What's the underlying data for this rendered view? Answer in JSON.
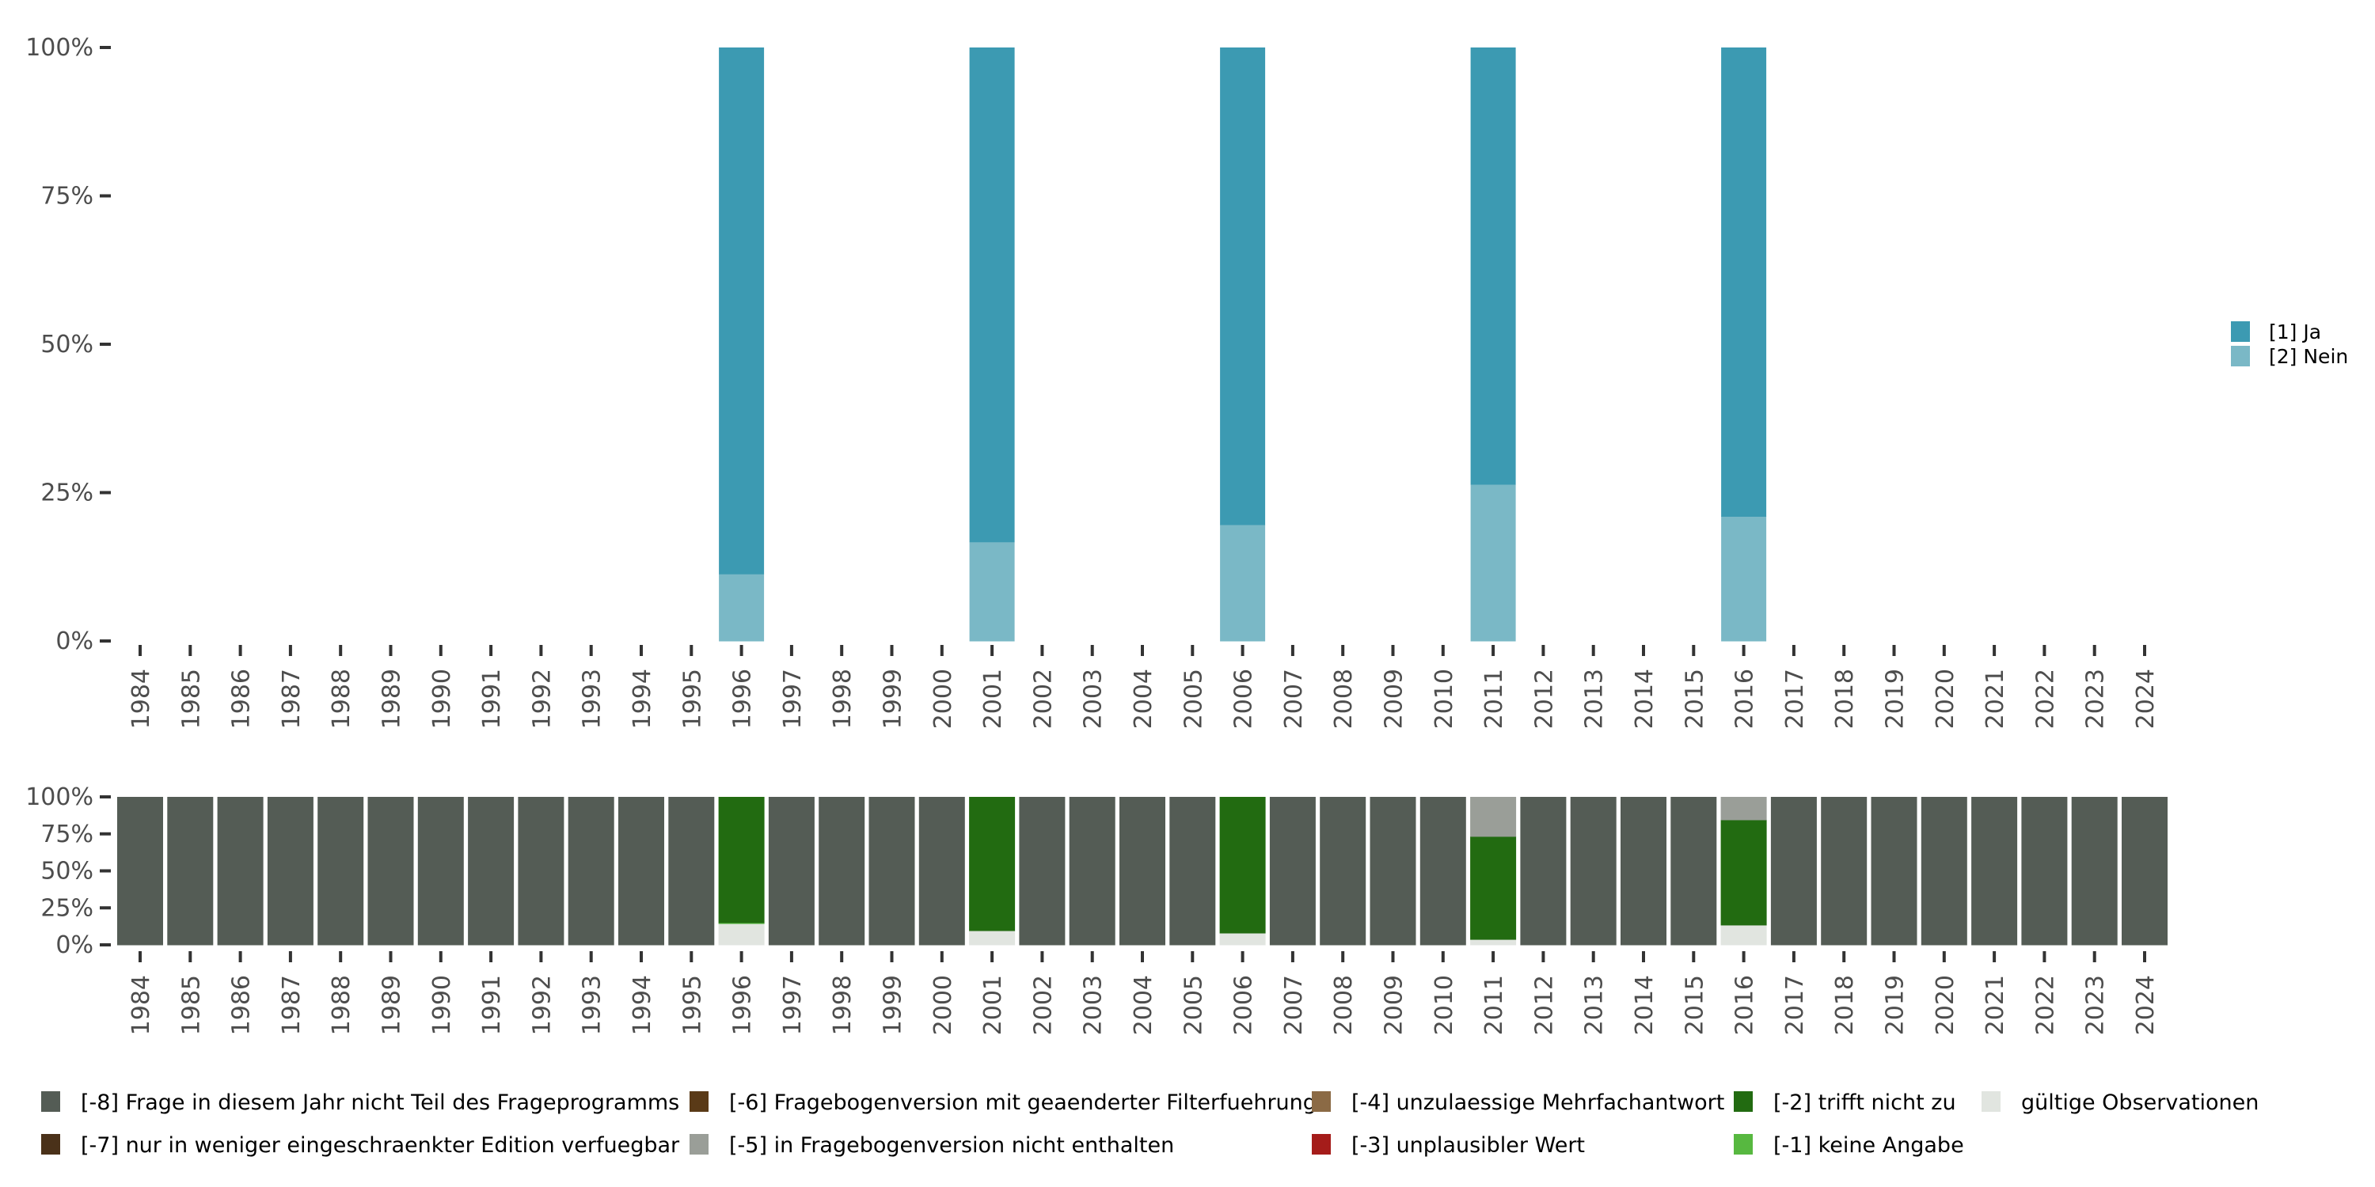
{
  "chart_data": [
    {
      "type": "bar",
      "stacked": true,
      "title": "",
      "xlabel": "",
      "ylabel": "",
      "ylim": [
        0,
        100
      ],
      "yticks": [
        "0%",
        "25%",
        "50%",
        "75%",
        "100%"
      ],
      "categories": [
        "1984",
        "1985",
        "1986",
        "1987",
        "1988",
        "1989",
        "1990",
        "1991",
        "1992",
        "1993",
        "1994",
        "1995",
        "1996",
        "1997",
        "1998",
        "1999",
        "2000",
        "2001",
        "2002",
        "2003",
        "2004",
        "2005",
        "2006",
        "2007",
        "2008",
        "2009",
        "2010",
        "2011",
        "2012",
        "2013",
        "2014",
        "2015",
        "2016",
        "2017",
        "2018",
        "2019",
        "2020",
        "2021",
        "2022",
        "2023",
        "2024"
      ],
      "legend_position": "right",
      "series": [
        {
          "name": "[2] Nein",
          "color": "#7ab8c6",
          "values": {
            "1996": 11.3,
            "2001": 16.7,
            "2006": 19.6,
            "2011": 26.4,
            "2016": 21.0
          }
        },
        {
          "name": "[1] Ja",
          "color": "#3c9ab2",
          "values": {
            "1996": 88.7,
            "2001": 83.3,
            "2006": 80.4,
            "2011": 73.6,
            "2016": 79.0
          }
        }
      ]
    },
    {
      "type": "bar",
      "stacked": true,
      "title": "",
      "xlabel": "",
      "ylabel": "",
      "ylim": [
        0,
        100
      ],
      "yticks": [
        "0%",
        "25%",
        "50%",
        "75%",
        "100%"
      ],
      "categories": [
        "1984",
        "1985",
        "1986",
        "1987",
        "1988",
        "1989",
        "1990",
        "1991",
        "1992",
        "1993",
        "1994",
        "1995",
        "1996",
        "1997",
        "1998",
        "1999",
        "2000",
        "2001",
        "2002",
        "2003",
        "2004",
        "2005",
        "2006",
        "2007",
        "2008",
        "2009",
        "2010",
        "2011",
        "2012",
        "2013",
        "2014",
        "2015",
        "2016",
        "2017",
        "2018",
        "2019",
        "2020",
        "2021",
        "2022",
        "2023",
        "2024"
      ],
      "legend_position": "bottom",
      "legend": [
        {
          "name": "[-8] Frage in diesem Jahr nicht Teil des Frageprogramms",
          "color": "#545c55"
        },
        {
          "name": "[-7] nur in weniger eingeschraenkter Edition verfuegbar",
          "color": "#4a3119"
        },
        {
          "name": "[-6] Fragebogenversion mit geaenderter Filterfuehrung",
          "color": "#5a3a17"
        },
        {
          "name": "[-5] in Fragebogenversion nicht enthalten",
          "color": "#9a9e98"
        },
        {
          "name": "[-4] unzulaessige Mehrfachantwort",
          "color": "#8b6a45"
        },
        {
          "name": "[-3] unplausibler Wert",
          "color": "#a51c1a"
        },
        {
          "name": "[-2] trifft nicht zu",
          "color": "#226b11"
        },
        {
          "name": "[-1] keine Angabe",
          "color": "#57b840"
        },
        {
          "name": "gültige Observationen",
          "color": "#e1e5e0"
        }
      ],
      "stacks": {
        "1996": {
          "gültige Observationen": 14.4,
          "[-1] keine Angabe": 0.6,
          "[-2] trifft nicht zu": 85.0
        },
        "2001": {
          "gültige Observationen": 9.6,
          "[-2] trifft nicht zu": 90.4
        },
        "2006": {
          "gültige Observationen": 8.0,
          "[-2] trifft nicht zu": 92.0
        },
        "2011": {
          "gültige Observationen": 3.7,
          "[-2] trifft nicht zu": 69.6,
          "[-5] in Fragebogenversion nicht enthalten": 26.7
        },
        "2016": {
          "gültige Observationen": 13.4,
          "[-2] trifft nicht zu": 71.1,
          "[-5] in Fragebogenversion nicht enthalten": 15.5
        }
      },
      "default_stack": {
        "[-8] Frage in diesem Jahr nicht Teil des Frageprogramms": 100
      }
    }
  ]
}
